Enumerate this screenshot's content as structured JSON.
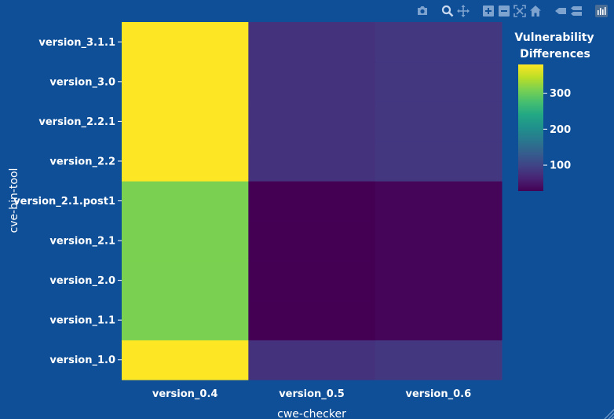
{
  "toolbar": {
    "buttons": [
      {
        "name": "download-plot-button",
        "icon": "camera-icon"
      },
      {
        "name": "zoom-button",
        "icon": "zoom-icon"
      },
      {
        "name": "pan-button",
        "icon": "pan-icon"
      },
      {
        "name": "zoom-in-button",
        "icon": "plus-icon"
      },
      {
        "name": "zoom-out-button",
        "icon": "minus-icon"
      },
      {
        "name": "autoscale-button",
        "icon": "autoscale-icon"
      },
      {
        "name": "reset-axes-button",
        "icon": "home-icon"
      },
      {
        "name": "spike-lines-button",
        "icon": "spike-icon"
      },
      {
        "name": "compare-hover-button",
        "icon": "compare-icon"
      },
      {
        "name": "plotly-logo-button",
        "icon": "plotly-logo-icon"
      }
    ],
    "active": "zoom-button"
  },
  "colors": {
    "background": "#0f4f97",
    "text": "#ffffff",
    "colorscale": "Viridis"
  },
  "chart_data": {
    "type": "heatmap",
    "xlabel": "cwe-checker",
    "ylabel": "cve-bin-tool",
    "x_categories": [
      "version_0.4",
      "version_0.5",
      "version_0.6"
    ],
    "y_categories": [
      "version_1.0",
      "version_1.1",
      "version_2.0",
      "version_2.1",
      "version_2.1.post1",
      "version_2.2",
      "version_2.2.1",
      "version_3.0",
      "version_3.1.1"
    ],
    "z": [
      [
        380,
        80,
        85
      ],
      [
        310,
        28,
        33
      ],
      [
        310,
        28,
        33
      ],
      [
        310,
        28,
        33
      ],
      [
        310,
        28,
        33
      ],
      [
        380,
        80,
        85
      ],
      [
        380,
        80,
        85
      ],
      [
        380,
        80,
        85
      ],
      [
        380,
        80,
        85
      ]
    ],
    "colorbar": {
      "title": [
        "Vulnerability",
        "Differences"
      ],
      "range": [
        28,
        380
      ],
      "ticks": [
        100,
        200,
        300
      ]
    }
  }
}
